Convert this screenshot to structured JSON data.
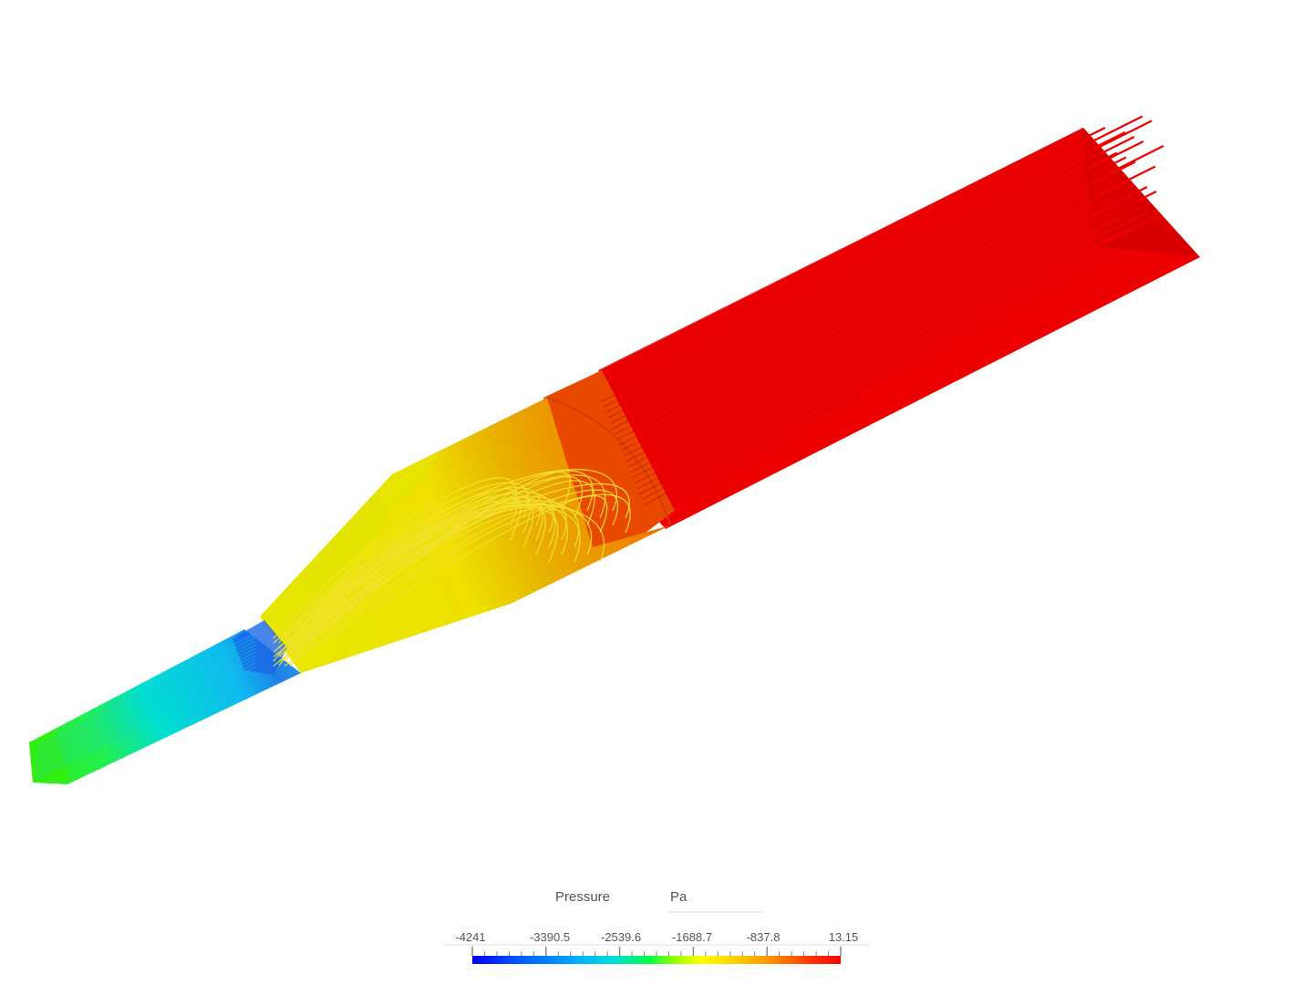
{
  "legend": {
    "field_name": "Pressure",
    "unit": "Pa",
    "tick_labels": [
      "-4241",
      "-3390.5",
      "-2539.6",
      "-1688.7",
      "-837.8",
      "13.15"
    ],
    "range": [
      -4241,
      13.15
    ],
    "colormap": [
      "#0000ff",
      "#0055ff",
      "#00aaff",
      "#00dddd",
      "#00ff66",
      "#55ff00",
      "#ccff00",
      "#ffff00",
      "#ffcc00",
      "#ff9900",
      "#ff5500",
      "#ff0000"
    ]
  },
  "colors": {
    "outlet_red": "#ee0000",
    "inlet_green": "#33ee11",
    "throat_blue": "#1f8fe8",
    "diffuser_yellow": "#ecec00",
    "transition_orange": "#e85000",
    "streamline_yellow": "#f2e030"
  }
}
